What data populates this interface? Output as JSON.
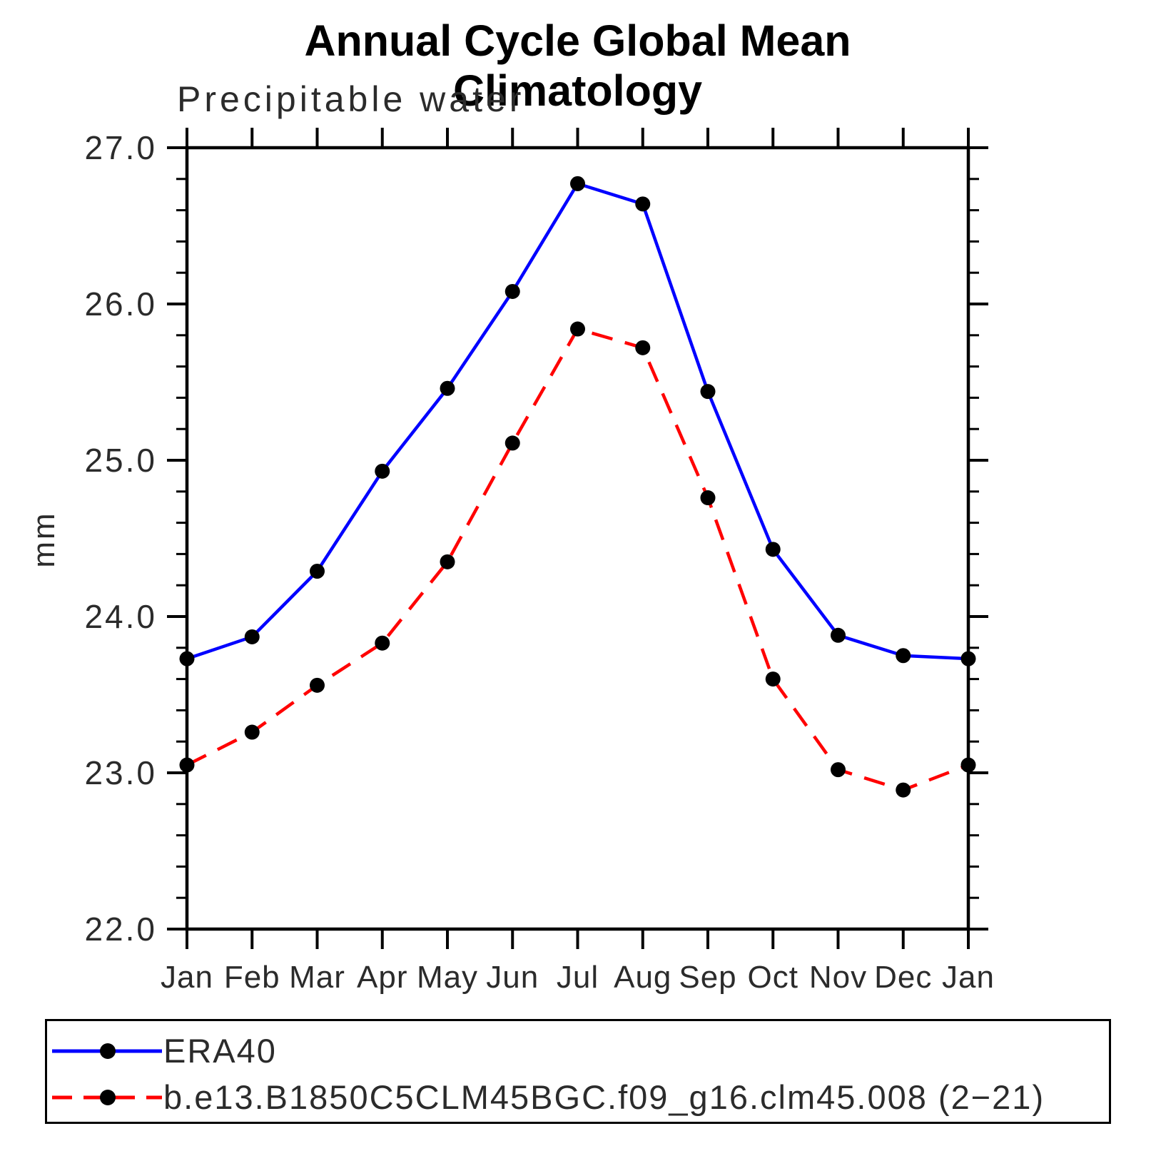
{
  "chart": {
    "title": "Annual Cycle Global Mean Climatology",
    "subtitle": "Precipitable water",
    "ylabel": "mm"
  },
  "colors": {
    "background": "#FFFFFF",
    "axis": "#000000",
    "marker": "#000000",
    "era40_line": "#0000FF",
    "model_line": "#FF0000"
  },
  "chart_data": {
    "type": "line",
    "title": "Annual Cycle Global Mean Climatology",
    "subtitle": "Precipitable water",
    "xlabel": "",
    "ylabel": "mm",
    "categories": [
      "Jan",
      "Feb",
      "Mar",
      "Apr",
      "May",
      "Jun",
      "Jul",
      "Aug",
      "Sep",
      "Oct",
      "Nov",
      "Dec",
      "Jan"
    ],
    "ylim": [
      22.0,
      27.0
    ],
    "ytick_major_step": 1.0,
    "ytick_minor_step": 0.2,
    "ytick_labels": [
      "27.0",
      "26.0",
      "25.0",
      "24.0",
      "23.0",
      "22.0"
    ],
    "grid": false,
    "legend_position": "bottom-left-box",
    "series": [
      {
        "name": "ERA40",
        "color": "#0000FF",
        "line_style": "solid",
        "marker": "filled-circle",
        "marker_color": "#000000",
        "values": [
          23.73,
          23.87,
          24.29,
          24.93,
          25.46,
          26.08,
          26.77,
          26.64,
          25.44,
          24.43,
          23.88,
          23.75,
          23.73
        ]
      },
      {
        "name": "b.e13.B1850C5CLM45BGC.f09_g16.clm45.008 (2−21)",
        "color": "#FF0000",
        "line_style": "dashed",
        "marker": "filled-circle",
        "marker_color": "#000000",
        "values": [
          23.05,
          23.26,
          23.56,
          23.83,
          24.35,
          25.11,
          25.84,
          25.72,
          24.76,
          23.6,
          23.02,
          22.89,
          23.05
        ]
      }
    ]
  }
}
